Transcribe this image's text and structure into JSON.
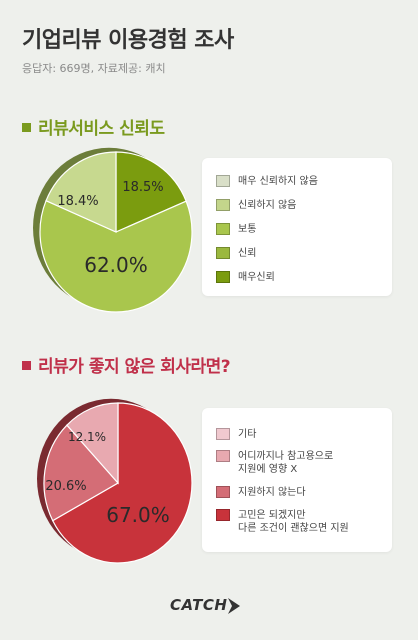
{
  "header": {
    "title": "기업리뷰 이용경험 조사",
    "subtitle": "응답자: 669명, 자료제공: 캐치"
  },
  "chart_data": [
    {
      "type": "pie",
      "title": "리뷰서비스 신뢰도",
      "slices": [
        {
          "label": "매우 신뢰하지 않음",
          "value": 0,
          "color": "#d9dfc8"
        },
        {
          "label": "신뢰하지 않음",
          "value": 0,
          "color": "#c3d58b"
        },
        {
          "label": "보통",
          "value": 62.0,
          "color": "#a9c64d"
        },
        {
          "label": "신뢰",
          "value": 18.4,
          "color": "#c7d98f"
        },
        {
          "label": "매우신뢰",
          "value": 18.5,
          "color": "#7b9c0f"
        }
      ],
      "data_labels": [
        "62.0%",
        "18.4%",
        "18.5%"
      ],
      "side_color": "#6c7d3a"
    },
    {
      "type": "pie",
      "title": "리뷰가 좋지 않은 회사라면?",
      "slices": [
        {
          "label": "기타",
          "value": 0,
          "color": "#f0c9cf"
        },
        {
          "label": "어디까지나 참고용으로\n지원에 영향 X",
          "value": 12.1,
          "color": "#e8a9b0"
        },
        {
          "label": "지원하지 않는다",
          "value": 20.6,
          "color": "#d46d76"
        },
        {
          "label": "고민은 되겠지만\n다른 조건이 괜찮으면 지원",
          "value": 67.0,
          "color": "#c8333b"
        }
      ],
      "data_labels": [
        "67.0%",
        "20.6%",
        "12.1%"
      ],
      "side_color": "#7a2a30"
    }
  ],
  "legend1": {
    "items": [
      {
        "label": "매우 신뢰하지 않음",
        "color": "#d9dfc8"
      },
      {
        "label": "신뢰하지 않음",
        "color": "#c3d58b"
      },
      {
        "label": "보통",
        "color": "#a9c64d"
      },
      {
        "label": "신뢰",
        "color": "#9bb83e"
      },
      {
        "label": "매우신뢰",
        "color": "#7b9c0f"
      }
    ]
  },
  "legend2": {
    "items": [
      {
        "label": "기타",
        "color": "#f0c9cf"
      },
      {
        "label": "어디까지나 참고용으로\n지원에 영향 X",
        "color": "#e8a9b0"
      },
      {
        "label": "지원하지 않는다",
        "color": "#d46d76"
      },
      {
        "label": "고민은 되겠지만\n다른 조건이 괜찮으면 지원",
        "color": "#c8333b"
      }
    ]
  },
  "footer": {
    "logo_text": "CATCH"
  }
}
